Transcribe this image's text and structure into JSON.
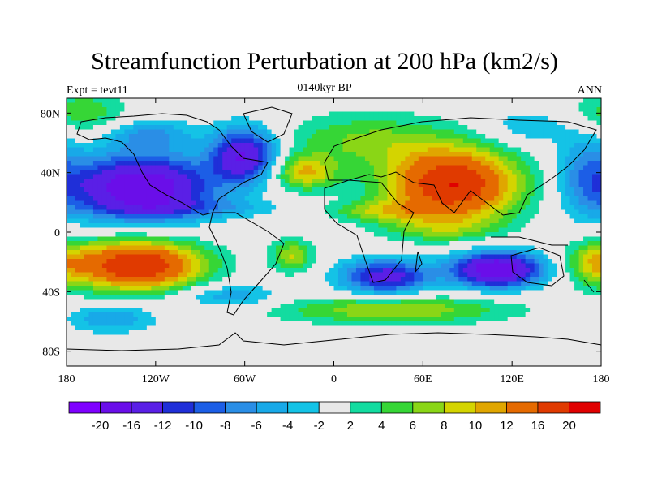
{
  "title": "Streamfunction Perturbation at 200 hPa (km2/s)",
  "left_label": "Expt = tevt11",
  "center_label": "0140kyr BP",
  "right_label": "ANN",
  "lat_ticks": [
    {
      "value": 80,
      "label": "80N"
    },
    {
      "value": 40,
      "label": "40N"
    },
    {
      "value": 0,
      "label": "0"
    },
    {
      "value": -40,
      "label": "40S"
    },
    {
      "value": -80,
      "label": "80S"
    }
  ],
  "lon_ticks": [
    {
      "value": -180,
      "label": "180"
    },
    {
      "value": -120,
      "label": "120W"
    },
    {
      "value": -60,
      "label": "60W"
    },
    {
      "value": 0,
      "label": "0"
    },
    {
      "value": 60,
      "label": "60E"
    },
    {
      "value": 120,
      "label": "120E"
    },
    {
      "value": 180,
      "label": "180"
    }
  ],
  "colorbar": {
    "colors": [
      "#7f00ff",
      "#6a0ee9",
      "#5a1fe6",
      "#1f2fd8",
      "#1c5ee6",
      "#2a8ee6",
      "#18a9e8",
      "#14c3e6",
      "#e8e8e8",
      "#13dca0",
      "#36d636",
      "#8ad616",
      "#d4d400",
      "#e0a600",
      "#e56a00",
      "#e03a00",
      "#e00000"
    ],
    "labels": [
      "-20",
      "-16",
      "-12",
      "-10",
      "-8",
      "-6",
      "-4",
      "-2",
      "2",
      "4",
      "6",
      "8",
      "10",
      "12",
      "16",
      "20"
    ]
  },
  "field_blobs": [
    {
      "lon": -130,
      "lat": 30,
      "rlon": 48,
      "rlat": 22,
      "amp": -20
    },
    {
      "lon": -60,
      "lat": 52,
      "rlon": 22,
      "rlat": 18,
      "amp": -16
    },
    {
      "lon": -170,
      "lat": 80,
      "rlon": 30,
      "rlat": 15,
      "amp": 6
    },
    {
      "lon": 20,
      "lat": 62,
      "rlon": 55,
      "rlat": 18,
      "amp": 6
    },
    {
      "lon": -20,
      "lat": 40,
      "rlon": 22,
      "rlat": 12,
      "amp": 10
    },
    {
      "lon": 80,
      "lat": 32,
      "rlon": 45,
      "rlat": 25,
      "amp": 20
    },
    {
      "lon": -90,
      "lat": 16,
      "rlon": 55,
      "rlat": 6,
      "amp": -4
    },
    {
      "lon": 30,
      "lat": 14,
      "rlon": 35,
      "rlat": 7,
      "amp": 6
    },
    {
      "lon": 70,
      "lat": 2,
      "rlon": 40,
      "rlat": 9,
      "amp": 4
    },
    {
      "lon": -133,
      "lat": -22,
      "rlon": 45,
      "rlat": 17,
      "amp": 20
    },
    {
      "lon": -28,
      "lat": -16,
      "rlon": 14,
      "rlat": 11,
      "amp": 8
    },
    {
      "lon": 35,
      "lat": -30,
      "rlon": 30,
      "rlat": 12,
      "amp": -14
    },
    {
      "lon": 110,
      "lat": -25,
      "rlon": 30,
      "rlat": 12,
      "amp": -20
    },
    {
      "lon": -70,
      "lat": -43,
      "rlon": 35,
      "rlat": 8,
      "amp": -6
    },
    {
      "lon": -150,
      "lat": -58,
      "rlon": 30,
      "rlat": 10,
      "amp": -6
    },
    {
      "lon": 40,
      "lat": -52,
      "rlon": 80,
      "rlat": 10,
      "amp": 8
    },
    {
      "lon": 175,
      "lat": -20,
      "rlon": 18,
      "rlat": 15,
      "amp": 6
    },
    {
      "lon": 170,
      "lat": 40,
      "rlon": 20,
      "rlat": 30,
      "amp": -6
    },
    {
      "lon": -125,
      "lat": 66,
      "rlon": 30,
      "rlat": 10,
      "amp": -6
    },
    {
      "lon": 130,
      "lat": 70,
      "rlon": 30,
      "rlat": 12,
      "amp": -4
    }
  ]
}
